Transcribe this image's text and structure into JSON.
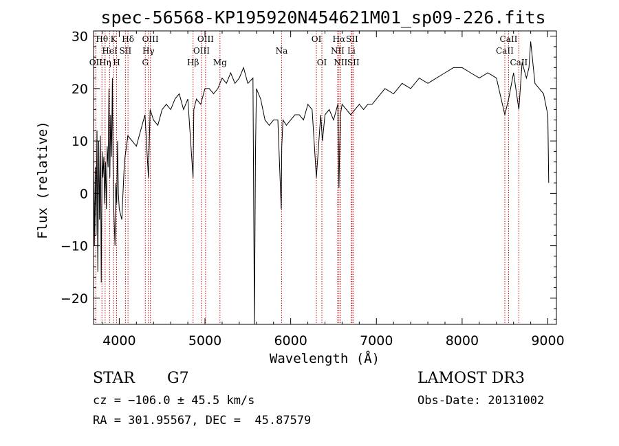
{
  "chart_data": {
    "type": "line",
    "title": "spec-56568-KP195920N454621M01_sp09-226.fits",
    "xlabel": "Wavelength (Å)",
    "ylabel": "Flux (relative)",
    "xlim": [
      3700,
      9100
    ],
    "ylim": [
      -25,
      31
    ],
    "xticks": [
      4000,
      5000,
      6000,
      7000,
      8000,
      9000
    ],
    "yticks": [
      -20,
      -10,
      0,
      10,
      20,
      30
    ],
    "grid": false,
    "series": [
      {
        "x": [
          3700,
          3710,
          3720,
          3730,
          3740,
          3750,
          3760,
          3770,
          3780,
          3790,
          3800,
          3810,
          3820,
          3830,
          3840,
          3850,
          3860,
          3870,
          3880,
          3890,
          3900,
          3910,
          3920,
          3930,
          3940,
          3950,
          3960,
          3970,
          3980,
          3990,
          4000,
          4030,
          4060,
          4100,
          4150,
          4200,
          4250,
          4300,
          4340,
          4360,
          4400,
          4450,
          4500,
          4550,
          4600,
          4650,
          4700,
          4750,
          4800,
          4861,
          4870,
          4900,
          4950,
          5000,
          5050,
          5100,
          5150,
          5200,
          5250,
          5300,
          5350,
          5400,
          5450,
          5500,
          5560,
          5577,
          5590,
          5600,
          5650,
          5700,
          5750,
          5800,
          5850,
          5890,
          5896,
          5910,
          5950,
          6000,
          6050,
          6100,
          6150,
          6200,
          6250,
          6300,
          6350,
          6370,
          6400,
          6450,
          6500,
          6550,
          6563,
          6580,
          6600,
          6650,
          6700,
          6750,
          6800,
          6850,
          6900,
          6950,
          7000,
          7100,
          7200,
          7300,
          7400,
          7500,
          7600,
          7700,
          7800,
          7900,
          8000,
          8100,
          8200,
          8300,
          8400,
          8498,
          8542,
          8600,
          8662,
          8700,
          8750,
          8780,
          8800,
          8850,
          8900,
          8950,
          9000,
          9010
        ],
        "y": [
          8,
          -10,
          5,
          -8,
          12,
          -15,
          10,
          -5,
          11,
          -17,
          8,
          3,
          7,
          -2,
          6,
          -3,
          9,
          5,
          20,
          3,
          15,
          7,
          22,
          0,
          -5,
          -10,
          2,
          -2,
          10,
          0,
          -3,
          -5,
          6,
          11,
          10,
          9,
          12,
          15,
          3,
          16,
          14,
          13,
          16,
          17,
          16,
          18,
          19,
          16,
          18,
          3,
          16,
          18,
          17,
          20,
          20,
          19,
          20,
          22,
          21,
          23,
          21,
          22,
          24,
          21,
          22,
          -25,
          8,
          20,
          18,
          14,
          13,
          14,
          14,
          -3,
          9,
          14,
          13,
          14,
          15,
          15,
          14,
          17,
          16,
          3,
          15,
          10,
          15,
          16,
          14,
          17,
          1,
          15,
          17,
          16,
          15,
          16,
          17,
          16,
          17,
          17,
          18,
          20,
          19,
          21,
          20,
          22,
          21,
          22,
          23,
          24,
          24,
          23,
          22,
          23,
          22,
          15,
          18,
          23,
          16,
          25,
          22,
          24,
          29,
          21,
          20,
          19,
          15,
          2
        ]
      }
    ],
    "lines": [
      {
        "wl": 3727,
        "label": "OII",
        "row": 2
      },
      {
        "wl": 3798,
        "label": "Hθ",
        "row": 0
      },
      {
        "wl": 3835,
        "label": "Hη",
        "row": 2
      },
      {
        "wl": 3889,
        "label": "HeI",
        "row": 1
      },
      {
        "wl": 3934,
        "label": "K",
        "row": 0
      },
      {
        "wl": 3969,
        "label": "H",
        "row": 2
      },
      {
        "wl": 4072,
        "label": "SII",
        "row": 1
      },
      {
        "wl": 4102,
        "label": "Hδ",
        "row": 0
      },
      {
        "wl": 4304,
        "label": "G",
        "row": 2
      },
      {
        "wl": 4340,
        "label": "Hγ",
        "row": 1
      },
      {
        "wl": 4363,
        "label": "OIII",
        "row": 0
      },
      {
        "wl": 4861,
        "label": "Hβ",
        "row": 2
      },
      {
        "wl": 4959,
        "label": "OIII",
        "row": 1
      },
      {
        "wl": 5007,
        "label": "OIII",
        "row": 0
      },
      {
        "wl": 5175,
        "label": "Mg",
        "row": 2
      },
      {
        "wl": 5894,
        "label": "Na",
        "row": 1
      },
      {
        "wl": 6300,
        "label": "OI",
        "row": 0
      },
      {
        "wl": 6364,
        "label": "OI",
        "row": 2
      },
      {
        "wl": 6548,
        "label": "NII",
        "row": 1
      },
      {
        "wl": 6563,
        "label": "Hα",
        "row": 0
      },
      {
        "wl": 6583,
        "label": "NII",
        "row": 2
      },
      {
        "wl": 6708,
        "label": "Li",
        "row": 1
      },
      {
        "wl": 6716,
        "label": "SII",
        "row": 0
      },
      {
        "wl": 6731,
        "label": "SII",
        "row": 2
      },
      {
        "wl": 8498,
        "label": "CaII",
        "row": 1
      },
      {
        "wl": 8542,
        "label": "CaII",
        "row": 0
      },
      {
        "wl": 8662,
        "label": "CaII",
        "row": 2
      }
    ],
    "line_color": "#cc0000"
  },
  "info": {
    "type": "STAR",
    "subclass": "G7",
    "survey": "LAMOST DR3",
    "cz": "cz = −106.0 ± 45.5 km/s",
    "obs_date": "Obs-Date: 20131002",
    "radec": "RA = 301.95567, DEC =  45.87579"
  }
}
